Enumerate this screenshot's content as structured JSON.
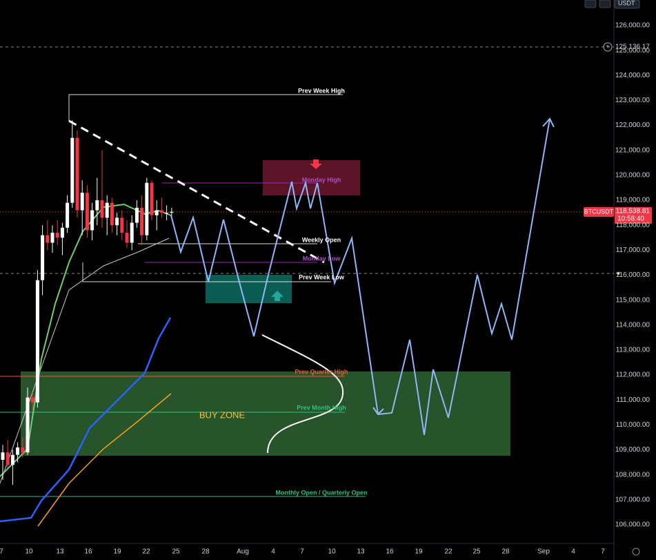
{
  "toolbar": {
    "currency": "USDT"
  },
  "price_axis": {
    "labels": [
      "126,000.00",
      "125,000.00",
      "124,000.00",
      "123,000.00",
      "122,000.00",
      "121,000.00",
      "120,000.00",
      "119,000.00",
      "118,000.00",
      "117,000.00",
      "116,000.00",
      "115,000.00",
      "114,000.00",
      "113,000.00",
      "112,000.00",
      "111,000.00",
      "110,000.00",
      "109,000.00",
      "108,000.00",
      "107,000.00",
      "106,000.00"
    ]
  },
  "time_axis": {
    "labels": [
      "7",
      "10",
      "13",
      "16",
      "19",
      "22",
      "25",
      "28",
      "Aug",
      "4",
      "7",
      "10",
      "13",
      "16",
      "19",
      "22",
      "25",
      "28",
      "Sep",
      "4",
      "7"
    ]
  },
  "price_tags": {
    "symbol": "BTCUSDT",
    "last_price": "118,538.81",
    "countdown": "10:58:40",
    "alert_line": "125,136.17"
  },
  "annotations": {
    "prev_week_high": "Prev Week High",
    "monday_high": "Monday High",
    "weekly_open": "Weekly Open",
    "monday_low": "Monday Low",
    "prev_week_low": "Prev Week Low",
    "prev_quarter_high": "Prev Quarter High",
    "prev_month_high": "Prev Month High",
    "buy_zone": "BUY ZONE",
    "monthly_open": "Monthly Open / Quarterly Open"
  },
  "candles": {
    "open": [
      108600,
      108900,
      108400,
      108800,
      109100,
      108900,
      111100,
      110900,
      115800,
      117600,
      117300,
      117700,
      117500,
      117900,
      118900,
      121500,
      118600,
      119300,
      117800,
      118600,
      119000,
      118300,
      118900,
      118000,
      118300,
      117700,
      117300,
      118100,
      118700,
      117600,
      119700,
      118400,
      118600,
      118500,
      118500
    ],
    "high": [
      109200,
      109400,
      109000,
      109300,
      109500,
      111500,
      111300,
      116200,
      118000,
      118200,
      118000,
      118200,
      118100,
      119200,
      122200,
      121800,
      119800,
      119600,
      118900,
      119900,
      121000,
      119200,
      119100,
      118500,
      118600,
      118200,
      118400,
      119000,
      119200,
      119900,
      119800,
      119000,
      119100,
      118800,
      118700
    ],
    "low": [
      107800,
      108300,
      107600,
      108500,
      108700,
      108800,
      110600,
      110700,
      115200,
      117000,
      116900,
      117200,
      116800,
      117700,
      118700,
      118300,
      117600,
      117500,
      117400,
      118000,
      117900,
      117600,
      117700,
      117600,
      117400,
      117100,
      117000,
      117900,
      117200,
      117400,
      118200,
      117800,
      118300,
      118200,
      118300
    ],
    "close": [
      108900,
      108400,
      108800,
      109100,
      108900,
      111100,
      110900,
      115800,
      117600,
      117300,
      117700,
      117500,
      117900,
      118900,
      121500,
      118600,
      119300,
      117800,
      118600,
      119000,
      118300,
      118900,
      118000,
      118300,
      117700,
      117300,
      118100,
      118700,
      117600,
      119700,
      118400,
      118600,
      118500,
      118500,
      118540
    ]
  }
}
